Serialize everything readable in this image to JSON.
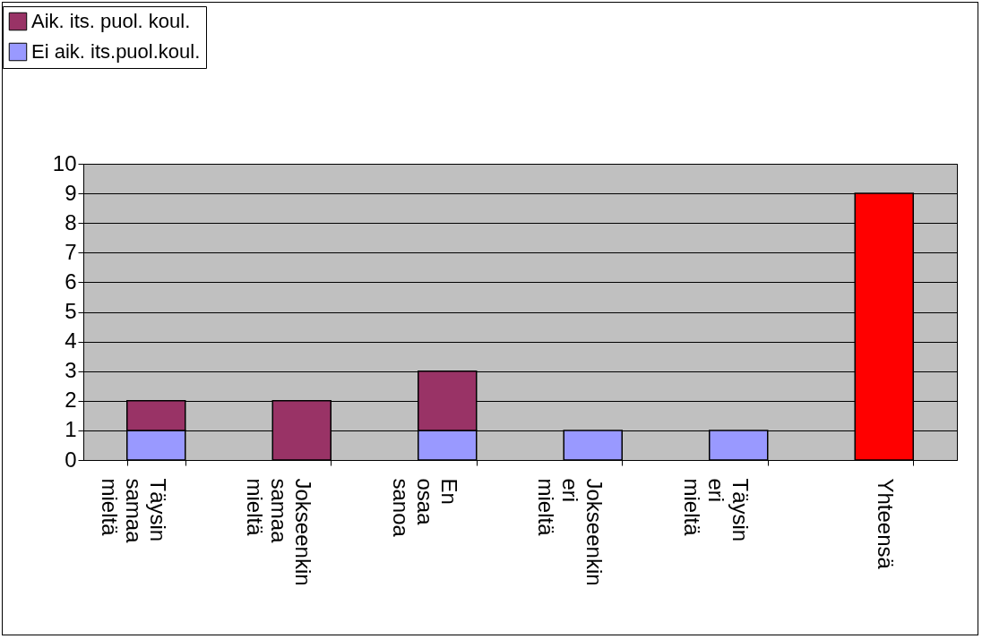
{
  "chart_data": {
    "type": "bar",
    "stacked": true,
    "categories": [
      "Täysin samaa mieltä",
      "Jokseenkin samaa mieltä",
      "En osaa sanoa",
      "Jokseenkin eri mieltä",
      "Täysin eri mieltä",
      "Yhteensä"
    ],
    "series": [
      {
        "name": "Ei aik. its.puol.koul.",
        "color": "#9999ff",
        "values": [
          1,
          null,
          1,
          1,
          1,
          null
        ]
      },
      {
        "name": "Aik. its. puol. koul.",
        "color": "#993366",
        "values": [
          1,
          2,
          2,
          null,
          null,
          null
        ]
      },
      {
        "color": "#ff0000",
        "values": [
          null,
          null,
          null,
          null,
          null,
          9
        ]
      }
    ],
    "ylim": [
      0,
      10
    ],
    "yticks": [
      0,
      1,
      2,
      3,
      4,
      5,
      6,
      7,
      8,
      9,
      10
    ],
    "grid": "y",
    "legend": "top left"
  }
}
